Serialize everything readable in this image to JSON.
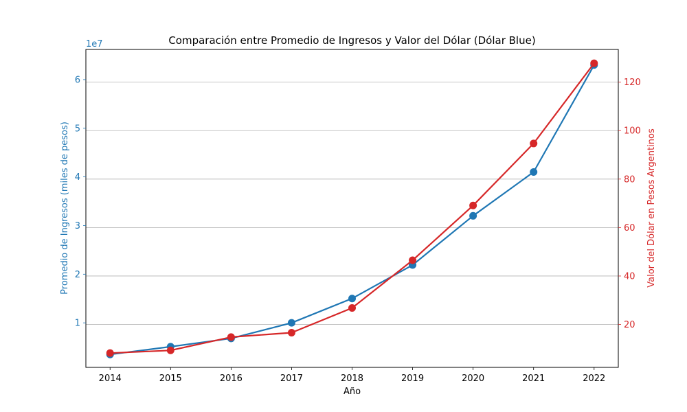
{
  "chart_data": {
    "type": "line",
    "title": "Comparación entre Promedio de Ingresos y Valor del Dólar (Dólar Blue)",
    "xlabel": "Año",
    "x": [
      2014,
      2015,
      2016,
      2017,
      2018,
      2019,
      2020,
      2021,
      2022
    ],
    "x_tick_labels": [
      "2014",
      "2015",
      "2016",
      "2017",
      "2018",
      "2019",
      "2020",
      "2021",
      "2022"
    ],
    "y_left": {
      "label": "Promedio de Ingresos (miles de pesos)",
      "offset_label": "1e7",
      "ticks": [
        1,
        2,
        3,
        4,
        5,
        6
      ],
      "tick_labels": [
        "1",
        "2",
        "3",
        "4",
        "5",
        "6"
      ],
      "lim": [
        0.085,
        6.62
      ],
      "color": "#1f77b4"
    },
    "y_right": {
      "label": "Valor del Dólar en Pesos Argentinos",
      "ticks": [
        20,
        40,
        60,
        80,
        100,
        120
      ],
      "tick_labels": [
        "20",
        "40",
        "60",
        "80",
        "100",
        "120"
      ],
      "lim": [
        2.3,
        133.5
      ],
      "color": "#d62728"
    },
    "series": [
      {
        "axis": "left",
        "color": "#1f77b4",
        "values": [
          0.35,
          0.51,
          0.68,
          1.0,
          1.5,
          2.19,
          3.2,
          4.1,
          6.3
        ]
      },
      {
        "axis": "right",
        "color": "#d62728",
        "values": [
          8.2,
          9.3,
          14.8,
          16.6,
          26.8,
          46.5,
          69.1,
          94.7,
          127.8
        ]
      }
    ],
    "grid": "horizontal (right axis)"
  }
}
